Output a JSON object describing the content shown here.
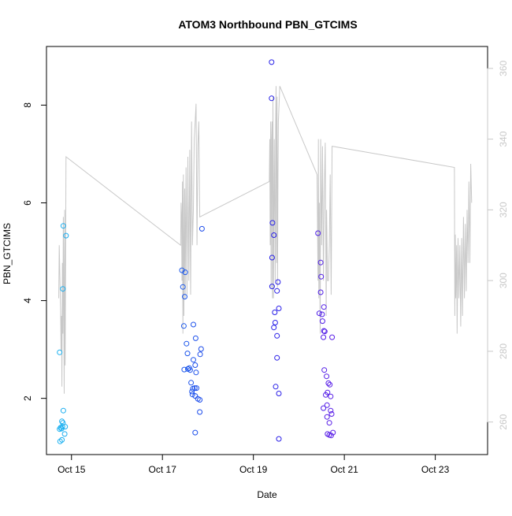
{
  "chart_data": {
    "type": "scatter",
    "title": "ATOM3 Northbound PBN_GTCIMS",
    "xlabel": "Date",
    "ylabel": "PBN_GTCIMS",
    "x_ticks": [
      {
        "day": 15,
        "label": "Oct 15"
      },
      {
        "day": 17,
        "label": "Oct 17"
      },
      {
        "day": 19,
        "label": "Oct 19"
      },
      {
        "day": 21,
        "label": "Oct 21"
      },
      {
        "day": 23,
        "label": "Oct 23"
      }
    ],
    "xlim": [
      14.45,
      24.15
    ],
    "ylim": [
      0.85,
      9.2
    ],
    "y_ticks": [
      2,
      4,
      6,
      8
    ],
    "y2lim": [
      250.8,
      366.2
    ],
    "y2_ticks": [
      260,
      280,
      300,
      320,
      340,
      360
    ],
    "y2_color": "#c8c8c8",
    "point_colors": {
      "start": "#1ab2f0",
      "mid": "#1f1fe8",
      "end": "#d21ae6"
    },
    "line_color": "#c8c8c8",
    "series": [
      {
        "name": "PBN_GTCIMS",
        "kind": "points",
        "points": [
          [
            14.74,
            2.94
          ],
          [
            14.82,
            5.53
          ],
          [
            14.81,
            4.24
          ],
          [
            14.88,
            5.33
          ],
          [
            14.82,
            1.75
          ],
          [
            14.79,
            1.53
          ],
          [
            14.81,
            1.5
          ],
          [
            14.76,
            1.4
          ],
          [
            14.8,
            1.42
          ],
          [
            14.86,
            1.42
          ],
          [
            14.74,
            1.37
          ],
          [
            14.78,
            1.38
          ],
          [
            14.85,
            1.27
          ],
          [
            14.79,
            1.15
          ],
          [
            14.75,
            1.12
          ],
          [
            17.43,
            4.62
          ],
          [
            17.45,
            4.28
          ],
          [
            17.5,
            4.58
          ],
          [
            17.49,
            4.08
          ],
          [
            17.87,
            5.47
          ],
          [
            17.47,
            3.48
          ],
          [
            17.68,
            3.51
          ],
          [
            17.53,
            3.12
          ],
          [
            17.73,
            3.23
          ],
          [
            17.85,
            3.01
          ],
          [
            17.55,
            2.92
          ],
          [
            17.83,
            2.9
          ],
          [
            17.68,
            2.79
          ],
          [
            17.72,
            2.68
          ],
          [
            17.48,
            2.59
          ],
          [
            17.56,
            2.6
          ],
          [
            17.59,
            2.62
          ],
          [
            17.61,
            2.58
          ],
          [
            17.74,
            2.53
          ],
          [
            17.63,
            2.32
          ],
          [
            17.71,
            2.21
          ],
          [
            17.67,
            2.2
          ],
          [
            17.75,
            2.21
          ],
          [
            17.65,
            2.14
          ],
          [
            17.66,
            2.08
          ],
          [
            17.72,
            2.05
          ],
          [
            17.78,
            1.99
          ],
          [
            17.82,
            1.97
          ],
          [
            17.82,
            1.72
          ],
          [
            17.72,
            1.3
          ],
          [
            19.4,
            8.88
          ],
          [
            19.4,
            8.14
          ],
          [
            19.42,
            5.59
          ],
          [
            19.45,
            5.34
          ],
          [
            19.41,
            4.88
          ],
          [
            19.54,
            4.38
          ],
          [
            19.41,
            4.29
          ],
          [
            19.52,
            4.2
          ],
          [
            19.56,
            3.84
          ],
          [
            19.47,
            3.76
          ],
          [
            19.48,
            3.55
          ],
          [
            19.45,
            3.45
          ],
          [
            19.52,
            3.28
          ],
          [
            19.52,
            2.83
          ],
          [
            19.49,
            2.24
          ],
          [
            19.56,
            2.1
          ],
          [
            19.56,
            1.17
          ],
          [
            20.42,
            5.38
          ],
          [
            20.48,
            4.78
          ],
          [
            20.49,
            4.49
          ],
          [
            20.48,
            4.17
          ],
          [
            20.55,
            3.87
          ],
          [
            20.45,
            3.74
          ],
          [
            20.51,
            3.72
          ],
          [
            20.52,
            3.58
          ],
          [
            20.55,
            3.38
          ],
          [
            20.57,
            3.37
          ],
          [
            20.54,
            3.25
          ],
          [
            20.73,
            3.25
          ],
          [
            20.56,
            2.58
          ],
          [
            20.61,
            2.45
          ],
          [
            20.65,
            2.31
          ],
          [
            20.68,
            2.28
          ],
          [
            20.63,
            2.12
          ],
          [
            20.59,
            2.07
          ],
          [
            20.7,
            2.04
          ],
          [
            20.62,
            1.86
          ],
          [
            20.54,
            1.8
          ],
          [
            20.7,
            1.75
          ],
          [
            20.72,
            1.68
          ],
          [
            20.62,
            1.62
          ],
          [
            20.67,
            1.5
          ],
          [
            20.75,
            1.3
          ],
          [
            20.63,
            1.27
          ],
          [
            20.67,
            1.25
          ],
          [
            20.71,
            1.24
          ]
        ]
      },
      {
        "name": "secondary (right axis)",
        "kind": "line",
        "points": [
          [
            14.72,
            295
          ],
          [
            14.73,
            310
          ],
          [
            14.75,
            298
          ],
          [
            14.76,
            292
          ],
          [
            14.77,
            280
          ],
          [
            14.78,
            290
          ],
          [
            14.79,
            270
          ],
          [
            14.8,
            305
          ],
          [
            14.81,
            285
          ],
          [
            14.82,
            318
          ],
          [
            14.83,
            295
          ],
          [
            14.84,
            268
          ],
          [
            14.85,
            320
          ],
          [
            14.86,
            276
          ],
          [
            14.87,
            300
          ],
          [
            14.88,
            335
          ],
          [
            17.4,
            310
          ],
          [
            17.41,
            322
          ],
          [
            17.42,
            318
          ],
          [
            17.43,
            300
          ],
          [
            17.44,
            328
          ],
          [
            17.45,
            285
          ],
          [
            17.46,
            330
          ],
          [
            17.47,
            290
          ],
          [
            17.49,
            326
          ],
          [
            17.5,
            295
          ],
          [
            17.52,
            332
          ],
          [
            17.54,
            296
          ],
          [
            17.56,
            335
          ],
          [
            17.58,
            300
          ],
          [
            17.6,
            337
          ],
          [
            17.62,
            296
          ],
          [
            17.64,
            345
          ],
          [
            17.66,
            310
          ],
          [
            17.68,
            320
          ],
          [
            17.7,
            340
          ],
          [
            17.72,
            345
          ],
          [
            17.74,
            350
          ],
          [
            17.76,
            310
          ],
          [
            17.78,
            338
          ],
          [
            17.8,
            345
          ],
          [
            17.82,
            318
          ],
          [
            19.35,
            328
          ],
          [
            19.36,
            340
          ],
          [
            19.37,
            310
          ],
          [
            19.38,
            345
          ],
          [
            19.39,
            298
          ],
          [
            19.4,
            340
          ],
          [
            19.41,
            345
          ],
          [
            19.42,
            295
          ],
          [
            19.43,
            352
          ],
          [
            19.44,
            295
          ],
          [
            19.45,
            320
          ],
          [
            19.46,
            340
          ],
          [
            19.48,
            300
          ],
          [
            19.49,
            345
          ],
          [
            19.5,
            355
          ],
          [
            19.51,
            305
          ],
          [
            19.52,
            352
          ],
          [
            19.53,
            298
          ],
          [
            19.54,
            330
          ],
          [
            19.55,
            345
          ],
          [
            19.58,
            355
          ],
          [
            20.4,
            330
          ],
          [
            20.42,
            300
          ],
          [
            20.43,
            340
          ],
          [
            20.44,
            295
          ],
          [
            20.45,
            322
          ],
          [
            20.47,
            285
          ],
          [
            20.48,
            340
          ],
          [
            20.5,
            310
          ],
          [
            20.52,
            338
          ],
          [
            20.54,
            300
          ],
          [
            20.56,
            325
          ],
          [
            20.58,
            339
          ],
          [
            20.6,
            290
          ],
          [
            20.61,
            320
          ],
          [
            20.63,
            300
          ],
          [
            20.65,
            300
          ],
          [
            20.67,
            310
          ],
          [
            20.69,
            330
          ],
          [
            20.71,
            296
          ],
          [
            20.73,
            338
          ],
          [
            23.42,
            332
          ],
          [
            23.43,
            290
          ],
          [
            23.44,
            313
          ],
          [
            23.45,
            295
          ],
          [
            23.47,
            310
          ],
          [
            23.48,
            285
          ],
          [
            23.5,
            312
          ],
          [
            23.52,
            295
          ],
          [
            23.54,
            310
          ],
          [
            23.56,
            287
          ],
          [
            23.58,
            312
          ],
          [
            23.6,
            290
          ],
          [
            23.62,
            318
          ],
          [
            23.64,
            295
          ],
          [
            23.66,
            316
          ],
          [
            23.68,
            297
          ],
          [
            23.7,
            320
          ],
          [
            23.72,
            305
          ],
          [
            23.74,
            328
          ],
          [
            23.76,
            305
          ],
          [
            23.78,
            333
          ],
          [
            23.8,
            322
          ]
        ]
      }
    ]
  }
}
